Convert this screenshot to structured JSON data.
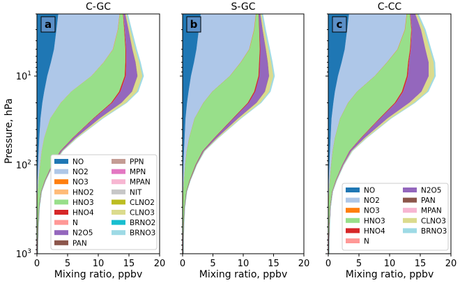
{
  "chart_data": {
    "type": "area",
    "stacked": true,
    "orientation": "horizontal-stack",
    "ylabel": "Pressure, hPa",
    "xlabel": "Mixing ratio, ppbv",
    "yscale": "log",
    "ylim": [
      1000,
      2
    ],
    "xlim": [
      0,
      20
    ],
    "x_ticks": [
      "0",
      "5",
      "10",
      "15",
      "20"
    ],
    "x_tick_values": [
      0,
      5,
      10,
      15,
      20
    ],
    "y_ticks": [
      {
        "base": "10",
        "exp": "1",
        "value": 10
      },
      {
        "base": "10",
        "exp": "2",
        "value": 100
      },
      {
        "base": "10",
        "exp": "3",
        "value": 1000
      }
    ],
    "pressure_levels": [
      2,
      3,
      5,
      7,
      10,
      15,
      20,
      30,
      50,
      70,
      100,
      150,
      200,
      300,
      500,
      700,
      1000
    ],
    "colors": {
      "NO": "#1f77b4",
      "NO2": "#aec7e8",
      "NO3": "#ff7f0e",
      "HNO2": "#ffbb78",
      "HNO3": "#98df8a",
      "HNO4": "#d62728",
      "N": "#ff9896",
      "N2O5": "#9467bd",
      "PAN": "#8c564b",
      "PPN": "#c49c94",
      "MPN": "#e377c2",
      "MPAN": "#f7b6d2",
      "NIT": "#c7c7c7",
      "CLNO2": "#bcbd22",
      "CLNO3": "#dbdb8d",
      "BRNO2": "#17becf",
      "BRNO3": "#9edae5"
    },
    "panels": [
      {
        "letter": "a",
        "title": "C-GC",
        "legend_columns": [
          [
            "NO",
            "NO2",
            "NO3",
            "HNO2",
            "HNO3",
            "HNO4",
            "N",
            "N2O5",
            "PAN"
          ],
          [
            "PPN",
            "MPN",
            "MPAN",
            "NIT",
            "CLNO2",
            "CLNO3",
            "BRNO2",
            "BRNO3"
          ]
        ],
        "series": [
          {
            "name": "NO",
            "values": [
              3.5,
              3.2,
              2.8,
              2.3,
              1.7,
              1.2,
              0.9,
              0.6,
              0.4,
              0.3,
              0.2,
              0.1,
              0.05,
              0.02,
              0.01,
              0.01,
              0.01
            ]
          },
          {
            "name": "NO2",
            "values": [
              10.0,
              10.0,
              9.6,
              8.6,
              7.2,
              4.4,
              3.0,
              1.6,
              0.8,
              0.5,
              0.35,
              0.2,
              0.1,
              0.05,
              0.03,
              0.02,
              0.02
            ]
          },
          {
            "name": "NO3",
            "values": [
              0.05,
              0.05,
              0.05,
              0.04,
              0.03,
              0.02,
              0.02,
              0.01,
              0.01,
              0.01,
              0.0,
              0.0,
              0.0,
              0.0,
              0.0,
              0.0,
              0.0
            ]
          },
          {
            "name": "HNO2",
            "values": [
              0.0,
              0.0,
              0.0,
              0.0,
              0.0,
              0.0,
              0.0,
              0.0,
              0.0,
              0.0,
              0.0,
              0.0,
              0.0,
              0.0,
              0.0,
              0.0,
              0.0
            ]
          },
          {
            "name": "HNO3",
            "values": [
              0.5,
              1.0,
              2.0,
              3.5,
              5.4,
              7.8,
              8.2,
              7.0,
              4.6,
              3.0,
              1.9,
              1.0,
              0.55,
              0.3,
              0.15,
              0.1,
              0.08
            ]
          },
          {
            "name": "HNO4",
            "values": [
              0.05,
              0.08,
              0.12,
              0.15,
              0.18,
              0.2,
              0.18,
              0.12,
              0.08,
              0.05,
              0.03,
              0.02,
              0.0,
              0.0,
              0.0,
              0.0,
              0.0
            ]
          },
          {
            "name": "N",
            "values": [
              0.02,
              0.02,
              0.01,
              0.01,
              0.0,
              0.0,
              0.0,
              0.0,
              0.0,
              0.0,
              0.0,
              0.0,
              0.0,
              0.0,
              0.0,
              0.0,
              0.0
            ]
          },
          {
            "name": "N2O5",
            "values": [
              0.3,
              0.6,
              1.0,
              1.5,
              1.9,
              1.9,
              1.5,
              0.9,
              0.4,
              0.2,
              0.1,
              0.04,
              0.02,
              0.0,
              0.0,
              0.0,
              0.0
            ]
          },
          {
            "name": "PAN",
            "values": [
              0.0,
              0.0,
              0.0,
              0.0,
              0.0,
              0.0,
              0.0,
              0.0,
              0.0,
              0.02,
              0.03,
              0.04,
              0.04,
              0.05,
              0.06,
              0.06,
              0.06
            ]
          },
          {
            "name": "CLNO3",
            "values": [
              0.2,
              0.3,
              0.5,
              0.6,
              0.8,
              0.8,
              0.7,
              0.45,
              0.2,
              0.1,
              0.05,
              0.03,
              0.02,
              0.01,
              0.0,
              0.0,
              0.0
            ]
          },
          {
            "name": "BRNO3",
            "values": [
              0.2,
              0.2,
              0.2,
              0.2,
              0.2,
              0.2,
              0.15,
              0.1,
              0.07,
              0.05,
              0.03,
              0.02,
              0.02,
              0.02,
              0.02,
              0.02,
              0.02
            ]
          }
        ]
      },
      {
        "letter": "b",
        "title": "S-GC",
        "legend_columns": [],
        "series": [
          {
            "name": "NO",
            "values": [
              3.0,
              2.7,
              2.3,
              1.9,
              1.4,
              1.0,
              0.75,
              0.5,
              0.35,
              0.25,
              0.15,
              0.08,
              0.04,
              0.02,
              0.01,
              0.01,
              0.01
            ]
          },
          {
            "name": "NO2",
            "values": [
              9.1,
              9.1,
              8.7,
              7.7,
              6.4,
              3.9,
              2.7,
              1.5,
              0.75,
              0.45,
              0.3,
              0.18,
              0.1,
              0.05,
              0.03,
              0.02,
              0.02
            ]
          },
          {
            "name": "NO3",
            "values": [
              0.05,
              0.05,
              0.05,
              0.04,
              0.03,
              0.02,
              0.02,
              0.01,
              0.01,
              0.01,
              0.0,
              0.0,
              0.0,
              0.0,
              0.0,
              0.0,
              0.0
            ]
          },
          {
            "name": "HNO3",
            "values": [
              0.4,
              0.8,
              1.7,
              3.0,
              4.7,
              6.9,
              7.3,
              6.3,
              4.1,
              2.6,
              1.7,
              0.9,
              0.5,
              0.25,
              0.12,
              0.08,
              0.06
            ]
          },
          {
            "name": "HNO4",
            "values": [
              0.04,
              0.06,
              0.1,
              0.13,
              0.15,
              0.17,
              0.15,
              0.1,
              0.07,
              0.04,
              0.03,
              0.02,
              0.0,
              0.0,
              0.0,
              0.0,
              0.0
            ]
          },
          {
            "name": "N2O5",
            "values": [
              0.25,
              0.5,
              0.9,
              1.3,
              1.6,
              1.6,
              1.3,
              0.75,
              0.35,
              0.15,
              0.08,
              0.03,
              0.01,
              0.0,
              0.0,
              0.0,
              0.0
            ]
          },
          {
            "name": "PAN",
            "values": [
              0.0,
              0.0,
              0.0,
              0.0,
              0.0,
              0.0,
              0.0,
              0.0,
              0.0,
              0.02,
              0.03,
              0.04,
              0.04,
              0.05,
              0.06,
              0.06,
              0.06
            ]
          },
          {
            "name": "CLNO3",
            "values": [
              0.2,
              0.3,
              0.45,
              0.55,
              0.7,
              0.7,
              0.6,
              0.4,
              0.2,
              0.1,
              0.05,
              0.03,
              0.02,
              0.01,
              0.0,
              0.0,
              0.0
            ]
          },
          {
            "name": "BRNO3",
            "values": [
              0.2,
              0.2,
              0.2,
              0.2,
              0.2,
              0.2,
              0.15,
              0.1,
              0.07,
              0.05,
              0.03,
              0.02,
              0.02,
              0.02,
              0.02,
              0.02,
              0.02
            ]
          }
        ]
      },
      {
        "letter": "c",
        "title": "C-CC",
        "legend_columns": [
          [
            "NO",
            "NO2",
            "NO3",
            "HNO3",
            "HNO4",
            "N"
          ],
          [
            "N2O5",
            "PAN",
            "MPAN",
            "CLNO3",
            "BRNO3"
          ]
        ],
        "series": [
          {
            "name": "NO",
            "values": [
              3.4,
              3.1,
              2.7,
              2.2,
              1.6,
              1.1,
              0.85,
              0.55,
              0.4,
              0.3,
              0.2,
              0.1,
              0.05,
              0.02,
              0.01,
              0.01,
              0.01
            ]
          },
          {
            "name": "NO2",
            "values": [
              9.4,
              9.4,
              8.6,
              7.4,
              6.0,
              3.6,
              2.4,
              1.4,
              0.7,
              0.45,
              0.3,
              0.18,
              0.1,
              0.05,
              0.03,
              0.02,
              0.02
            ]
          },
          {
            "name": "NO3",
            "values": [
              0.05,
              0.05,
              0.05,
              0.04,
              0.03,
              0.02,
              0.02,
              0.01,
              0.01,
              0.01,
              0.0,
              0.0,
              0.0,
              0.0,
              0.0,
              0.0,
              0.0
            ]
          },
          {
            "name": "HNO3",
            "values": [
              0.5,
              1.0,
              2.0,
              3.4,
              5.2,
              7.3,
              7.6,
              6.4,
              4.2,
              2.7,
              1.8,
              0.95,
              0.5,
              0.25,
              0.12,
              0.08,
              0.06
            ]
          },
          {
            "name": "HNO4",
            "values": [
              0.05,
              0.08,
              0.12,
              0.15,
              0.18,
              0.2,
              0.18,
              0.12,
              0.08,
              0.05,
              0.03,
              0.02,
              0.0,
              0.0,
              0.0,
              0.0,
              0.0
            ]
          },
          {
            "name": "N",
            "values": [
              0.02,
              0.02,
              0.01,
              0.01,
              0.0,
              0.0,
              0.0,
              0.0,
              0.0,
              0.0,
              0.0,
              0.0,
              0.0,
              0.0,
              0.0,
              0.0,
              0.0
            ]
          },
          {
            "name": "N2O5",
            "values": [
              0.8,
              1.5,
              2.4,
              3.2,
              3.4,
              3.0,
              2.2,
              1.2,
              0.55,
              0.25,
              0.12,
              0.05,
              0.02,
              0.0,
              0.0,
              0.0,
              0.0
            ]
          },
          {
            "name": "PAN",
            "values": [
              0.0,
              0.0,
              0.0,
              0.0,
              0.0,
              0.0,
              0.0,
              0.0,
              0.0,
              0.02,
              0.03,
              0.04,
              0.04,
              0.05,
              0.06,
              0.06,
              0.06
            ]
          },
          {
            "name": "MPAN",
            "values": [
              0.0,
              0.0,
              0.0,
              0.0,
              0.0,
              0.0,
              0.0,
              0.0,
              0.0,
              0.0,
              0.01,
              0.01,
              0.01,
              0.01,
              0.01,
              0.01,
              0.01
            ]
          },
          {
            "name": "CLNO3",
            "values": [
              0.3,
              0.5,
              0.7,
              0.8,
              0.9,
              0.9,
              0.75,
              0.5,
              0.25,
              0.12,
              0.06,
              0.03,
              0.02,
              0.01,
              0.0,
              0.0,
              0.0
            ]
          },
          {
            "name": "BRNO3",
            "values": [
              0.2,
              0.2,
              0.2,
              0.2,
              0.2,
              0.2,
              0.15,
              0.1,
              0.07,
              0.05,
              0.03,
              0.02,
              0.02,
              0.02,
              0.02,
              0.02,
              0.02
            ]
          }
        ]
      }
    ]
  }
}
